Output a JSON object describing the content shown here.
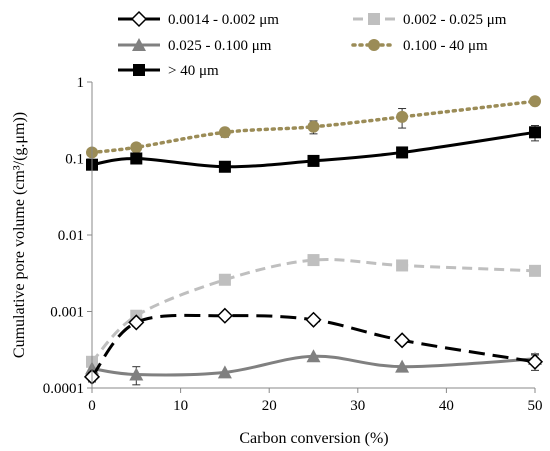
{
  "chart_data": {
    "type": "line",
    "xlabel": "Carbon conversion (%)",
    "ylabel": "Cumulative pore volume (cm³/(g.μm))",
    "xlim": [
      0,
      50
    ],
    "ylim": [
      0.0001,
      1
    ],
    "yscale": "log",
    "x_ticks": [
      0,
      10,
      20,
      30,
      40,
      50
    ],
    "y_ticks": [
      0.0001,
      0.001,
      0.01,
      0.1,
      1
    ],
    "y_tick_labels": [
      "0.0001",
      "0.001",
      "0.01",
      "0.1",
      "1"
    ],
    "grid": false,
    "legend_position": "top",
    "series": [
      {
        "name": "0.0014 - 0.002 μm",
        "color": "#000000",
        "line_style": "long-dash",
        "marker": "diamond-open",
        "x": [
          0,
          5,
          15,
          25,
          35,
          50
        ],
        "y": [
          0.00014,
          0.00072,
          0.00088,
          0.00078,
          0.00042,
          0.00022
        ],
        "err": [
          2e-05,
          8e-05,
          0,
          0,
          0,
          5e-05
        ]
      },
      {
        "name": "0.002 - 0.025 μm",
        "color": "#bfbfbf",
        "line_style": "dash",
        "marker": "square",
        "x": [
          0,
          5,
          15,
          25,
          35,
          50
        ],
        "y": [
          0.00022,
          0.00088,
          0.0026,
          0.0047,
          0.004,
          0.0034
        ],
        "err": [
          0,
          0,
          0,
          0,
          0,
          0
        ]
      },
      {
        "name": "0.025 - 0.100 μm",
        "color": "#808080",
        "line_style": "solid",
        "marker": "triangle",
        "x": [
          0,
          5,
          15,
          25,
          35,
          50
        ],
        "y": [
          0.00018,
          0.00015,
          0.00016,
          0.00026,
          0.00019,
          0.00024
        ],
        "err": [
          0,
          4e-05,
          0,
          0,
          0,
          4e-05
        ]
      },
      {
        "name": "0.100 - 40 μm",
        "color": "#9b8c57",
        "line_style": "dot",
        "marker": "circle",
        "x": [
          0,
          5,
          15,
          25,
          35,
          50
        ],
        "y": [
          0.12,
          0.14,
          0.22,
          0.26,
          0.35,
          0.56
        ],
        "err": [
          0,
          0,
          0.03,
          0.05,
          0.1,
          0
        ]
      },
      {
        "name": "> 40 μm",
        "color": "#000000",
        "line_style": "solid",
        "marker": "square",
        "x": [
          0,
          5,
          15,
          25,
          35,
          50
        ],
        "y": [
          0.083,
          0.1,
          0.078,
          0.093,
          0.12,
          0.22
        ],
        "err": [
          0.01,
          0,
          0,
          0,
          0,
          0.05
        ]
      }
    ]
  }
}
